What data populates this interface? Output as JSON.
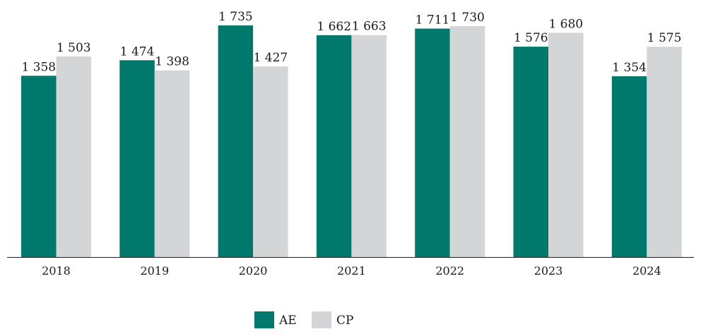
{
  "chart_data": {
    "type": "bar",
    "title": "",
    "xlabel": "",
    "ylabel": "",
    "categories": [
      "2018",
      "2019",
      "2020",
      "2021",
      "2022",
      "2023",
      "2024"
    ],
    "series": [
      {
        "name": "AE",
        "color": "#00786c",
        "values": [
          1358,
          1474,
          1735,
          1662,
          1711,
          1576,
          1354
        ],
        "labels": [
          "1 358",
          "1 474",
          "1 735",
          "1 662",
          "1 711",
          "1 576",
          "1 354"
        ]
      },
      {
        "name": "CP",
        "color": "#d4d5d7",
        "values": [
          1503,
          1398,
          1427,
          1663,
          1730,
          1680,
          1575
        ],
        "labels": [
          "1 503",
          "1 398",
          "1 427",
          "1 663",
          "1 730",
          "1 680",
          "1 575"
        ]
      }
    ],
    "ylim": [
      0,
      1800
    ],
    "grid": false,
    "legend": "bottom-center",
    "data_labels": true
  }
}
